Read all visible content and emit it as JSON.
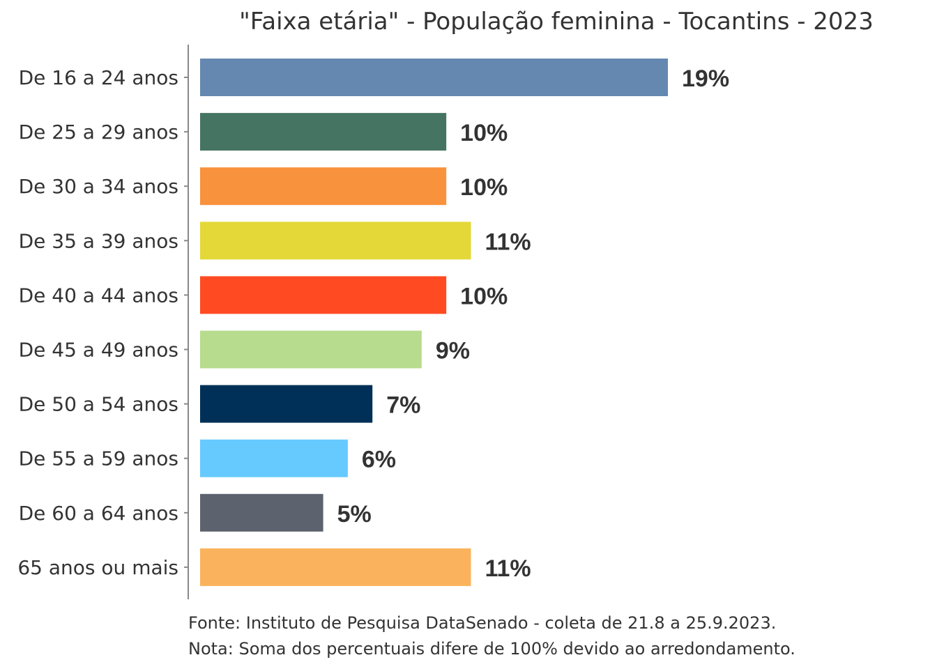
{
  "chart_data": {
    "type": "bar",
    "orientation": "horizontal",
    "title": "\"Faixa etária\" - População feminina - Tocantins - 2023",
    "categories": [
      "De 16 a 24 anos",
      "De 25 a 29 anos",
      "De 30 a 34 anos",
      "De 35 a 39 anos",
      "De 40 a 44 anos",
      "De 45 a 49 anos",
      "De 50 a 54 anos",
      "De 55 a 59 anos",
      "De 60 a 64 anos",
      "65 anos ou mais"
    ],
    "values": [
      19,
      10,
      10,
      11,
      10,
      9,
      7,
      6,
      5,
      11
    ],
    "value_labels": [
      "19%",
      "10%",
      "10%",
      "11%",
      "10%",
      "9%",
      "7%",
      "6%",
      "5%",
      "11%"
    ],
    "colors": [
      "#6488B0",
      "#467462",
      "#F9923C",
      "#E4D838",
      "#FF4A22",
      "#B8DC8E",
      "#003057",
      "#66CAFF",
      "#5D636E",
      "#FAB35C"
    ],
    "unit": "%",
    "xlim": [
      0,
      20
    ],
    "grid": false,
    "legend": "none"
  },
  "footnotes": [
    "Fonte: Instituto de Pesquisa DataSenado - coleta de 21.8 a 25.9.2023.",
    "Nota: Soma dos percentuais difere de 100% devido ao arredondamento."
  ]
}
